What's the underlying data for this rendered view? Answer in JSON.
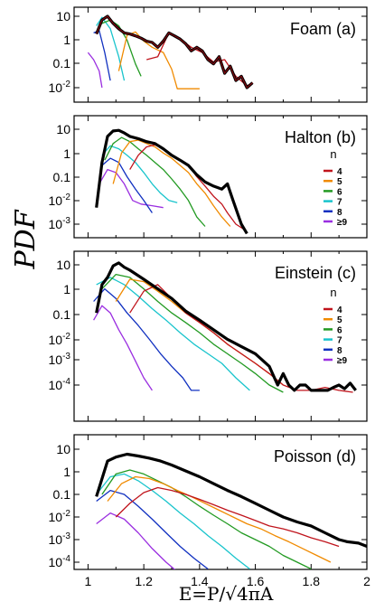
{
  "figure": {
    "ylabel": "PDF",
    "xlabel": "E=P/√4πA",
    "x_ticks": [
      "1",
      "1.2",
      "1.4",
      "1.6",
      "1.8",
      "2"
    ],
    "legend_title": "n",
    "legend_entries": [
      "4",
      "5",
      "6",
      "7",
      "8",
      "≥9"
    ]
  },
  "colors": {
    "n4": "#c0141c",
    "n5": "#f08a00",
    "n6": "#229a22",
    "n7": "#18c4cc",
    "n8": "#1030c0",
    "n9": "#9a2ee0",
    "all": "#000000"
  },
  "chart_data": [
    {
      "type": "line",
      "title": "Foam (a)",
      "yscale": "log",
      "xlim": [
        0.95,
        2.0
      ],
      "ylim": [
        0.005,
        25
      ],
      "y_ticks": [
        "10",
        "1",
        "0.1",
        "10-2"
      ],
      "legend": false,
      "series": [
        {
          "key": "all",
          "x": [
            1.03,
            1.05,
            1.07,
            1.09,
            1.11,
            1.13,
            1.15,
            1.17,
            1.19,
            1.21,
            1.23,
            1.25,
            1.27,
            1.29,
            1.31,
            1.33,
            1.35,
            1.37,
            1.39,
            1.41,
            1.43,
            1.45,
            1.47,
            1.49,
            1.51,
            1.53,
            1.55,
            1.57,
            1.59
          ],
          "y": [
            1.8,
            7,
            10,
            5,
            3,
            2,
            1.8,
            1.5,
            1.2,
            0.9,
            0.8,
            0.5,
            0.9,
            2,
            1.5,
            1.1,
            0.7,
            0.35,
            0.5,
            0.35,
            0.15,
            0.1,
            0.2,
            0.04,
            0.08,
            0.02,
            0.03,
            0.01,
            0.016
          ]
        },
        {
          "key": "n4",
          "x": [
            1.21,
            1.25,
            1.29,
            1.33,
            1.37,
            1.41,
            1.45,
            1.49,
            1.53,
            1.57,
            1.59
          ],
          "y": [
            0.15,
            0.2,
            2,
            1.1,
            0.5,
            0.3,
            0.12,
            0.15,
            0.03,
            0.012,
            0.016
          ]
        },
        {
          "key": "n5",
          "x": [
            1.11,
            1.14,
            1.17,
            1.2,
            1.23,
            1.27,
            1.3,
            1.32,
            1.36,
            1.4
          ],
          "y": [
            0.05,
            1.6,
            2.2,
            0.9,
            0.5,
            0.3,
            0.06,
            0.009,
            0.009,
            0.009
          ]
        },
        {
          "key": "n6",
          "x": [
            1.05,
            1.08,
            1.11,
            1.14,
            1.17,
            1.19
          ],
          "y": [
            5,
            7,
            4,
            1,
            0.1,
            0.03
          ]
        },
        {
          "key": "n7",
          "x": [
            1.03,
            1.05,
            1.08,
            1.11,
            1.13
          ],
          "y": [
            4,
            9,
            3,
            0.2,
            0.02
          ]
        },
        {
          "key": "n8",
          "x": [
            1.02,
            1.04,
            1.06,
            1.08
          ],
          "y": [
            2,
            2.5,
            0.3,
            0.02
          ]
        },
        {
          "key": "n9",
          "x": [
            1.0,
            1.02,
            1.04,
            1.05
          ],
          "y": [
            0.3,
            0.15,
            0.05,
            0.01
          ]
        }
      ]
    },
    {
      "type": "line",
      "title": "Halton (b)",
      "yscale": "log",
      "xlim": [
        0.95,
        2.0
      ],
      "ylim": [
        0.0005,
        20
      ],
      "y_ticks": [
        "10",
        "1",
        "0.1",
        "10-2",
        "10-3"
      ],
      "legend": true,
      "series": [
        {
          "key": "all",
          "x": [
            1.03,
            1.05,
            1.07,
            1.09,
            1.11,
            1.13,
            1.15,
            1.18,
            1.21,
            1.24,
            1.27,
            1.3,
            1.33,
            1.36,
            1.39,
            1.42,
            1.45,
            1.48,
            1.5,
            1.52,
            1.55,
            1.57
          ],
          "y": [
            0.005,
            0.4,
            5,
            8.5,
            9,
            7,
            5,
            4,
            3,
            2.5,
            1.5,
            0.8,
            0.5,
            0.3,
            0.12,
            0.06,
            0.04,
            0.03,
            0.05,
            0.01,
            0.001,
            0.0004
          ]
        },
        {
          "key": "n4",
          "x": [
            1.15,
            1.18,
            1.21,
            1.24,
            1.27,
            1.3,
            1.33,
            1.36,
            1.39,
            1.42,
            1.45,
            1.48,
            1.5,
            1.53,
            1.56
          ],
          "y": [
            0.2,
            0.8,
            1.8,
            2.2,
            1.5,
            0.8,
            0.5,
            0.3,
            0.1,
            0.04,
            0.015,
            0.007,
            0.003,
            0.001,
            0.0006
          ]
        },
        {
          "key": "n5",
          "x": [
            1.09,
            1.12,
            1.15,
            1.18,
            1.21,
            1.24,
            1.27,
            1.3,
            1.33,
            1.36,
            1.39,
            1.42,
            1.45,
            1.48,
            1.51
          ],
          "y": [
            0.05,
            1,
            3,
            3.5,
            2.5,
            1.8,
            1,
            0.6,
            0.3,
            0.15,
            0.05,
            0.02,
            0.006,
            0.002,
            0.0008
          ]
        },
        {
          "key": "n6",
          "x": [
            1.06,
            1.09,
            1.12,
            1.15,
            1.18,
            1.21,
            1.24,
            1.27,
            1.3,
            1.33,
            1.36,
            1.39,
            1.42
          ],
          "y": [
            0.5,
            2.5,
            4.5,
            3,
            1.5,
            0.8,
            0.4,
            0.2,
            0.08,
            0.03,
            0.01,
            0.002,
            0.0008
          ]
        },
        {
          "key": "n7",
          "x": [
            1.05,
            1.08,
            1.11,
            1.14,
            1.17,
            1.2,
            1.23,
            1.26,
            1.29,
            1.32
          ],
          "y": [
            0.8,
            2,
            1.5,
            0.8,
            0.4,
            0.15,
            0.05,
            0.02,
            0.01,
            0.008
          ]
        },
        {
          "key": "n8",
          "x": [
            1.05,
            1.08,
            1.11,
            1.14,
            1.17,
            1.2,
            1.23
          ],
          "y": [
            0.3,
            0.6,
            0.4,
            0.1,
            0.03,
            0.01,
            0.003
          ]
        },
        {
          "key": "n9",
          "x": [
            1.04,
            1.07,
            1.1,
            1.13,
            1.16,
            1.19,
            1.23,
            1.27
          ],
          "y": [
            0.05,
            0.2,
            0.15,
            0.05,
            0.01,
            0.007,
            0.006,
            0.005
          ]
        }
      ]
    },
    {
      "type": "line",
      "title": "Einstein (c)",
      "yscale": "log",
      "xlim": [
        0.95,
        2.0
      ],
      "ylim": [
        5e-05,
        25
      ],
      "y_ticks": [
        "10",
        "1",
        "0.1",
        "10-2",
        "10-3",
        "10-4"
      ],
      "legend": true,
      "series": [
        {
          "key": "all",
          "x": [
            1.03,
            1.05,
            1.07,
            1.09,
            1.11,
            1.13,
            1.15,
            1.2,
            1.25,
            1.3,
            1.35,
            1.4,
            1.45,
            1.5,
            1.55,
            1.6,
            1.65,
            1.68,
            1.7,
            1.72,
            1.74,
            1.76,
            1.78,
            1.8,
            1.82,
            1.84,
            1.86,
            1.88,
            1.9,
            1.92,
            1.94,
            1.96
          ],
          "y": [
            0.1,
            1.5,
            3,
            9,
            12,
            8,
            6,
            2.5,
            1,
            0.4,
            0.12,
            0.05,
            0.02,
            0.008,
            0.004,
            0.002,
            0.0006,
            0.0001,
            0.0003,
            0.0001,
            6e-05,
            0.0001,
            0.0001,
            6e-05,
            6e-05,
            6e-05,
            6e-05,
            8e-05,
            0.0001,
            7e-05,
            0.00012,
            6e-05
          ]
        },
        {
          "key": "n4",
          "x": [
            1.15,
            1.2,
            1.25,
            1.3,
            1.35,
            1.4,
            1.45,
            1.5,
            1.55,
            1.6,
            1.65,
            1.7,
            1.75,
            1.8,
            1.85,
            1.9,
            1.95
          ],
          "y": [
            0.1,
            0.8,
            1.5,
            0.4,
            0.1,
            0.04,
            0.015,
            0.005,
            0.002,
            0.0008,
            0.0003,
            0.0001,
            6e-05,
            6e-05,
            8e-05,
            6e-05,
            5e-05
          ]
        },
        {
          "key": "n5",
          "x": [
            1.1,
            1.15,
            1.2,
            1.25,
            1.3,
            1.35,
            1.4,
            1.45,
            1.5,
            1.55,
            1.6,
            1.65,
            1.7
          ],
          "y": [
            0.3,
            2.5,
            2,
            0.8,
            0.3,
            0.1,
            0.04,
            0.015,
            0.005,
            0.002,
            0.0008,
            0.0003,
            0.0001
          ]
        },
        {
          "key": "n6",
          "x": [
            1.05,
            1.1,
            1.15,
            1.2,
            1.25,
            1.3,
            1.35,
            1.4,
            1.45,
            1.5,
            1.55,
            1.6,
            1.65,
            1.7
          ],
          "y": [
            1,
            4,
            3,
            1,
            0.3,
            0.1,
            0.04,
            0.015,
            0.005,
            0.002,
            0.0008,
            0.0003,
            0.0001,
            5e-05
          ]
        },
        {
          "key": "n7",
          "x": [
            1.03,
            1.08,
            1.13,
            1.18,
            1.23,
            1.28,
            1.33,
            1.38,
            1.43,
            1.48,
            1.53,
            1.58
          ],
          "y": [
            1.5,
            3,
            1.5,
            0.5,
            0.15,
            0.05,
            0.015,
            0.005,
            0.002,
            0.0008,
            0.0002,
            6e-05
          ]
        },
        {
          "key": "n8",
          "x": [
            1.02,
            1.06,
            1.1,
            1.14,
            1.18,
            1.22,
            1.26,
            1.3,
            1.34,
            1.37,
            1.4
          ],
          "y": [
            0.3,
            1,
            0.4,
            0.1,
            0.03,
            0.008,
            0.002,
            0.0006,
            0.0002,
            6e-05,
            6e-05
          ]
        },
        {
          "key": "n9",
          "x": [
            1.02,
            1.05,
            1.08,
            1.11,
            1.14,
            1.17,
            1.2,
            1.23
          ],
          "y": [
            0.05,
            0.2,
            0.1,
            0.02,
            0.005,
            0.001,
            0.0002,
            6e-05
          ]
        }
      ]
    },
    {
      "type": "line",
      "title": "Poisson (d)",
      "yscale": "log",
      "xlim": [
        0.95,
        2.0
      ],
      "ylim": [
        3e-05,
        25
      ],
      "y_ticks": [
        "10",
        "1",
        "0.1",
        "10-2",
        "10-3",
        "10-4"
      ],
      "legend": false,
      "series": [
        {
          "key": "all",
          "x": [
            1.03,
            1.07,
            1.1,
            1.14,
            1.18,
            1.22,
            1.26,
            1.3,
            1.35,
            1.4,
            1.45,
            1.5,
            1.55,
            1.6,
            1.65,
            1.7,
            1.75,
            1.8,
            1.85,
            1.9,
            1.93,
            1.97,
            2.0
          ],
          "y": [
            0.08,
            3,
            4.5,
            6,
            5,
            4,
            3,
            2,
            1.1,
            0.6,
            0.3,
            0.15,
            0.08,
            0.04,
            0.02,
            0.01,
            0.006,
            0.004,
            0.002,
            0.001,
            0.0008,
            0.0007,
            0.0005
          ]
        },
        {
          "key": "n4",
          "x": [
            1.1,
            1.15,
            1.2,
            1.25,
            1.3,
            1.35,
            1.4,
            1.45,
            1.5,
            1.55,
            1.6,
            1.65,
            1.7,
            1.75,
            1.8,
            1.85,
            1.9
          ],
          "y": [
            0.01,
            0.04,
            0.12,
            0.2,
            0.15,
            0.1,
            0.06,
            0.035,
            0.02,
            0.012,
            0.007,
            0.004,
            0.003,
            0.002,
            0.0012,
            0.0008,
            0.0005
          ]
        },
        {
          "key": "n5",
          "x": [
            1.07,
            1.12,
            1.17,
            1.22,
            1.27,
            1.32,
            1.37,
            1.42,
            1.47,
            1.52,
            1.57,
            1.62,
            1.67,
            1.72,
            1.77,
            1.82,
            1.87
          ],
          "y": [
            0.05,
            0.3,
            0.6,
            0.5,
            0.3,
            0.15,
            0.08,
            0.04,
            0.02,
            0.01,
            0.005,
            0.003,
            0.0015,
            0.0008,
            0.0004,
            0.0002,
            0.0001
          ]
        },
        {
          "key": "n6",
          "x": [
            1.05,
            1.1,
            1.15,
            1.2,
            1.25,
            1.3,
            1.35,
            1.4,
            1.45,
            1.5,
            1.55,
            1.6,
            1.65,
            1.7,
            1.75,
            1.8
          ],
          "y": [
            0.1,
            0.8,
            1.2,
            0.8,
            0.4,
            0.2,
            0.08,
            0.03,
            0.012,
            0.005,
            0.002,
            0.001,
            0.0005,
            0.0002,
            0.0001,
            5e-05
          ]
        },
        {
          "key": "n7",
          "x": [
            1.03,
            1.08,
            1.13,
            1.18,
            1.23,
            1.28,
            1.33,
            1.38,
            1.43,
            1.48,
            1.53,
            1.58
          ],
          "y": [
            0.1,
            0.6,
            0.8,
            0.4,
            0.15,
            0.05,
            0.015,
            0.005,
            0.0015,
            0.0005,
            0.00015,
            5e-05
          ]
        },
        {
          "key": "n8",
          "x": [
            1.03,
            1.08,
            1.13,
            1.18,
            1.23,
            1.28,
            1.33,
            1.38,
            1.43
          ],
          "y": [
            0.05,
            0.15,
            0.1,
            0.03,
            0.008,
            0.002,
            0.0005,
            0.00015,
            5e-05
          ]
        },
        {
          "key": "n9",
          "x": [
            1.03,
            1.08,
            1.13,
            1.18,
            1.23,
            1.28,
            1.33
          ],
          "y": [
            0.005,
            0.015,
            0.008,
            0.002,
            0.0004,
            0.0001,
            3e-05
          ]
        }
      ]
    }
  ]
}
